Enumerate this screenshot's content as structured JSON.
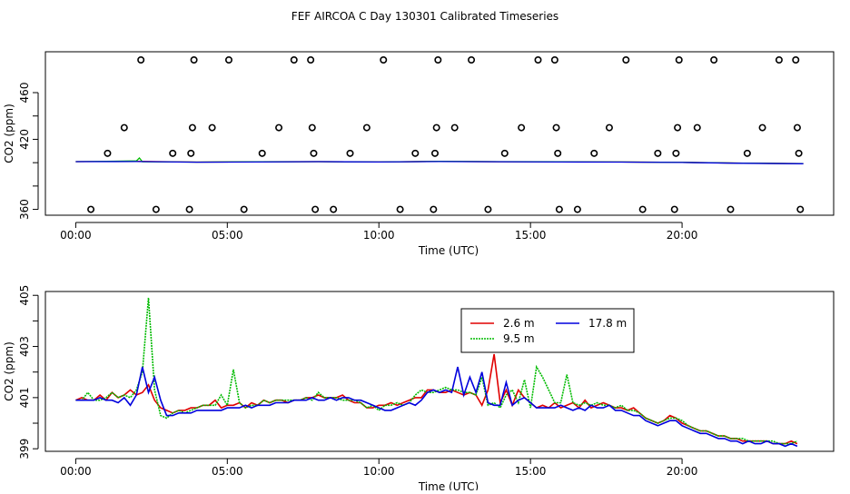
{
  "title": "FEF AIRCOA C  Day 130301  Calibrated Timeseries",
  "colors": {
    "red": "#e00000",
    "green": "#00bb00",
    "blue": "#0000dd",
    "black": "#000000"
  },
  "chart_data": [
    {
      "type": "scatter",
      "xlabel": "Time (UTC)",
      "ylabel": "CO2 (ppm)",
      "xlim": [
        -1.0,
        25.0
      ],
      "ylim": [
        355,
        495
      ],
      "xticks": [
        0,
        5,
        10,
        15,
        20
      ],
      "xtick_labels": [
        "00:00",
        "05:00",
        "10:00",
        "15:00",
        "20:00"
      ],
      "yticks": [
        360,
        380,
        400,
        420,
        440,
        460
      ],
      "ytick_labels": [
        "360",
        "",
        "",
        "420",
        "",
        "460"
      ],
      "circles": [
        {
          "x": 0.5,
          "y": 360
        },
        {
          "x": 1.05,
          "y": 408
        },
        {
          "x": 1.6,
          "y": 430
        },
        {
          "x": 2.15,
          "y": 488
        },
        {
          "x": 2.65,
          "y": 360
        },
        {
          "x": 3.2,
          "y": 408
        },
        {
          "x": 3.75,
          "y": 360
        },
        {
          "x": 3.8,
          "y": 408
        },
        {
          "x": 3.85,
          "y": 430
        },
        {
          "x": 3.9,
          "y": 488
        },
        {
          "x": 4.5,
          "y": 430
        },
        {
          "x": 5.05,
          "y": 488
        },
        {
          "x": 5.55,
          "y": 360
        },
        {
          "x": 6.15,
          "y": 408
        },
        {
          "x": 6.7,
          "y": 430
        },
        {
          "x": 7.2,
          "y": 488
        },
        {
          "x": 7.75,
          "y": 488
        },
        {
          "x": 7.8,
          "y": 430
        },
        {
          "x": 7.85,
          "y": 408
        },
        {
          "x": 7.9,
          "y": 360
        },
        {
          "x": 8.5,
          "y": 360
        },
        {
          "x": 9.05,
          "y": 408
        },
        {
          "x": 9.6,
          "y": 430
        },
        {
          "x": 10.15,
          "y": 488
        },
        {
          "x": 10.7,
          "y": 360
        },
        {
          "x": 11.2,
          "y": 408
        },
        {
          "x": 11.8,
          "y": 360
        },
        {
          "x": 11.85,
          "y": 408
        },
        {
          "x": 11.9,
          "y": 430
        },
        {
          "x": 11.95,
          "y": 488
        },
        {
          "x": 12.5,
          "y": 430
        },
        {
          "x": 13.05,
          "y": 488
        },
        {
          "x": 13.6,
          "y": 360
        },
        {
          "x": 14.15,
          "y": 408
        },
        {
          "x": 14.7,
          "y": 430
        },
        {
          "x": 15.25,
          "y": 488
        },
        {
          "x": 15.8,
          "y": 488
        },
        {
          "x": 15.85,
          "y": 430
        },
        {
          "x": 15.9,
          "y": 408
        },
        {
          "x": 15.95,
          "y": 360
        },
        {
          "x": 16.55,
          "y": 360
        },
        {
          "x": 17.1,
          "y": 408
        },
        {
          "x": 17.6,
          "y": 430
        },
        {
          "x": 18.15,
          "y": 488
        },
        {
          "x": 18.7,
          "y": 360
        },
        {
          "x": 19.2,
          "y": 408
        },
        {
          "x": 19.75,
          "y": 360
        },
        {
          "x": 19.8,
          "y": 408
        },
        {
          "x": 19.85,
          "y": 430
        },
        {
          "x": 19.9,
          "y": 488
        },
        {
          "x": 20.5,
          "y": 430
        },
        {
          "x": 21.05,
          "y": 488
        },
        {
          "x": 21.6,
          "y": 360
        },
        {
          "x": 22.15,
          "y": 408
        },
        {
          "x": 22.65,
          "y": 430
        },
        {
          "x": 23.2,
          "y": 488
        },
        {
          "x": 23.75,
          "y": 488
        },
        {
          "x": 23.8,
          "y": 430
        },
        {
          "x": 23.85,
          "y": 408
        },
        {
          "x": 23.9,
          "y": 360
        }
      ],
      "series": [
        {
          "name": "2.6 m",
          "color": "#e00000",
          "x": [
            0,
            2,
            4,
            6,
            8,
            10,
            12,
            14,
            16,
            18,
            20,
            22,
            24
          ],
          "y": [
            400.9,
            401.2,
            400.5,
            400.7,
            400.9,
            400.6,
            401.1,
            400.8,
            400.7,
            400.6,
            400.3,
            399.6,
            399.2
          ]
        },
        {
          "name": "9.5 m",
          "color": "#00bb00",
          "x": [
            0,
            2,
            2.1,
            2.2,
            4,
            6,
            8,
            10,
            12,
            14,
            16,
            18,
            20,
            22,
            24
          ],
          "y": [
            400.9,
            401.5,
            404.0,
            400.8,
            400.5,
            400.7,
            400.9,
            400.6,
            401.1,
            400.9,
            400.7,
            400.6,
            400.3,
            399.6,
            399.2
          ]
        },
        {
          "name": "17.8 m",
          "color": "#0000dd",
          "x": [
            0,
            2,
            4,
            6,
            8,
            10,
            12,
            14,
            16,
            18,
            20,
            22,
            24
          ],
          "y": [
            400.9,
            401.0,
            400.4,
            400.6,
            400.9,
            400.6,
            401.0,
            400.8,
            400.6,
            400.5,
            400.2,
            399.5,
            399.1
          ]
        }
      ]
    },
    {
      "type": "line",
      "xlabel": "Time (UTC)",
      "ylabel": "CO2 (ppm)",
      "xlim": [
        -1.0,
        25.0
      ],
      "ylim": [
        398.9,
        405.15
      ],
      "xticks": [
        0,
        5,
        10,
        15,
        20
      ],
      "xtick_labels": [
        "00:00",
        "05:00",
        "10:00",
        "15:00",
        "20:00"
      ],
      "yticks": [
        399,
        400,
        401,
        402,
        403,
        404,
        405
      ],
      "ytick_labels": [
        "399",
        "",
        "401",
        "",
        "403",
        "",
        "405"
      ],
      "legend": {
        "position": "top-right-center",
        "entries": [
          {
            "label": "2.6 m",
            "color": "#e00000"
          },
          {
            "label": "17.8 m",
            "color": "#0000dd"
          },
          {
            "label": "9.5 m",
            "color": "#00bb00"
          }
        ]
      },
      "x": [
        0,
        0.2,
        0.4,
        0.6,
        0.8,
        1.0,
        1.2,
        1.4,
        1.6,
        1.8,
        2.0,
        2.2,
        2.4,
        2.6,
        2.8,
        3.0,
        3.2,
        3.4,
        3.6,
        3.8,
        4.0,
        4.2,
        4.4,
        4.6,
        4.8,
        5.0,
        5.2,
        5.4,
        5.6,
        5.8,
        6.0,
        6.2,
        6.4,
        6.6,
        6.8,
        7.0,
        7.2,
        7.4,
        7.6,
        7.8,
        8.0,
        8.2,
        8.4,
        8.6,
        8.8,
        9.0,
        9.2,
        9.4,
        9.6,
        9.8,
        10.0,
        10.2,
        10.4,
        10.6,
        10.8,
        11.0,
        11.2,
        11.4,
        11.6,
        11.8,
        12.0,
        12.2,
        12.4,
        12.6,
        12.8,
        13.0,
        13.2,
        13.4,
        13.6,
        13.8,
        14.0,
        14.2,
        14.4,
        14.6,
        14.8,
        15.0,
        15.2,
        15.4,
        15.6,
        15.8,
        16.0,
        16.2,
        16.4,
        16.6,
        16.8,
        17.0,
        17.2,
        17.4,
        17.6,
        17.8,
        18.0,
        18.2,
        18.4,
        18.6,
        18.8,
        19.0,
        19.2,
        19.4,
        19.6,
        19.8,
        20.0,
        20.2,
        20.4,
        20.6,
        20.8,
        21.0,
        21.2,
        21.4,
        21.6,
        21.8,
        22.0,
        22.2,
        22.4,
        22.6,
        22.8,
        23.0,
        23.2,
        23.4,
        23.6,
        23.8
      ],
      "series": [
        {
          "name": "2.6 m",
          "color": "#e00000",
          "values": [
            400.9,
            401.0,
            400.9,
            400.9,
            401.1,
            400.9,
            401.2,
            401.0,
            401.1,
            401.3,
            401.1,
            401.2,
            401.5,
            400.9,
            400.6,
            400.5,
            400.4,
            400.5,
            400.5,
            400.6,
            400.6,
            400.7,
            400.7,
            400.9,
            400.6,
            400.7,
            400.7,
            400.8,
            400.6,
            400.8,
            400.7,
            400.9,
            400.8,
            400.9,
            400.9,
            400.8,
            400.9,
            400.9,
            401.0,
            401.0,
            401.1,
            401.0,
            401.0,
            401.0,
            401.1,
            400.9,
            400.8,
            400.8,
            400.6,
            400.6,
            400.7,
            400.7,
            400.8,
            400.7,
            400.8,
            400.9,
            401.0,
            401.0,
            401.3,
            401.3,
            401.2,
            401.2,
            401.3,
            401.2,
            401.1,
            401.2,
            401.1,
            400.7,
            401.3,
            402.7,
            400.8,
            401.3,
            400.7,
            401.3,
            401.0,
            400.8,
            400.6,
            400.7,
            400.6,
            400.8,
            400.6,
            400.7,
            400.8,
            400.6,
            400.9,
            400.6,
            400.7,
            400.8,
            400.7,
            400.6,
            400.6,
            400.5,
            400.6,
            400.4,
            400.2,
            400.1,
            400.0,
            400.1,
            400.3,
            400.2,
            400.0,
            399.9,
            399.8,
            399.7,
            399.7,
            399.6,
            399.5,
            399.5,
            399.4,
            399.4,
            399.3,
            399.3,
            399.3,
            399.3,
            399.3,
            399.2,
            399.2,
            399.2,
            399.3,
            399.2
          ]
        },
        {
          "name": "9.5 m",
          "color": "#00bb00",
          "values": [
            400.9,
            400.9,
            401.2,
            400.9,
            400.9,
            401.0,
            401.2,
            401.0,
            401.1,
            401.0,
            401.3,
            402.0,
            404.9,
            401.3,
            400.3,
            400.2,
            400.4,
            400.5,
            400.4,
            400.5,
            400.6,
            400.7,
            400.7,
            400.7,
            401.1,
            400.7,
            402.1,
            400.8,
            400.6,
            400.7,
            400.7,
            400.9,
            400.8,
            400.9,
            400.9,
            400.9,
            400.9,
            400.9,
            401.0,
            400.9,
            401.2,
            401.0,
            401.0,
            401.0,
            400.9,
            400.9,
            400.9,
            400.8,
            400.6,
            400.7,
            400.5,
            400.7,
            400.7,
            400.8,
            400.7,
            400.8,
            401.1,
            401.3,
            401.2,
            401.2,
            401.3,
            401.4,
            401.3,
            401.3,
            401.2,
            401.2,
            401.1,
            401.8,
            400.7,
            400.8,
            400.6,
            401.1,
            401.3,
            400.8,
            401.7,
            400.6,
            402.2,
            401.8,
            401.3,
            400.8,
            400.8,
            401.9,
            400.8,
            400.7,
            400.8,
            400.7,
            400.8,
            400.7,
            400.7,
            400.6,
            400.7,
            400.5,
            400.5,
            400.4,
            400.2,
            400.1,
            400.0,
            400.1,
            400.2,
            400.2,
            400.1,
            399.9,
            399.8,
            399.7,
            399.7,
            399.6,
            399.5,
            399.5,
            399.4,
            399.4,
            399.4,
            399.3,
            399.3,
            399.3,
            399.3,
            399.3,
            399.2,
            399.2,
            399.2,
            399.3
          ]
        },
        {
          "name": "17.8 m",
          "color": "#0000dd",
          "values": [
            400.9,
            400.9,
            400.9,
            400.9,
            401.0,
            400.9,
            400.9,
            400.8,
            401.0,
            400.7,
            401.1,
            402.2,
            401.2,
            401.8,
            400.9,
            400.3,
            400.3,
            400.4,
            400.4,
            400.4,
            400.5,
            400.5,
            400.5,
            400.5,
            400.5,
            400.6,
            400.6,
            400.6,
            400.7,
            400.6,
            400.7,
            400.7,
            400.7,
            400.8,
            400.8,
            400.8,
            400.9,
            400.9,
            400.9,
            401.0,
            400.9,
            400.9,
            401.0,
            400.9,
            401.0,
            401.0,
            400.9,
            400.9,
            400.8,
            400.7,
            400.6,
            400.5,
            400.5,
            400.6,
            400.7,
            400.8,
            400.7,
            400.9,
            401.2,
            401.3,
            401.2,
            401.3,
            401.2,
            402.2,
            401.1,
            401.8,
            401.2,
            402.0,
            400.8,
            400.7,
            400.7,
            401.6,
            400.7,
            400.9,
            401.0,
            400.8,
            400.6,
            400.6,
            400.6,
            400.6,
            400.7,
            400.6,
            400.5,
            400.6,
            400.5,
            400.7,
            400.6,
            400.6,
            400.7,
            400.5,
            400.5,
            400.4,
            400.3,
            400.3,
            400.1,
            400.0,
            399.9,
            400.0,
            400.1,
            400.1,
            399.9,
            399.8,
            399.7,
            399.6,
            399.6,
            399.5,
            399.4,
            399.4,
            399.3,
            399.3,
            399.2,
            399.3,
            399.2,
            399.2,
            399.3,
            399.2,
            399.2,
            399.1,
            399.2,
            399.1
          ]
        }
      ]
    }
  ]
}
